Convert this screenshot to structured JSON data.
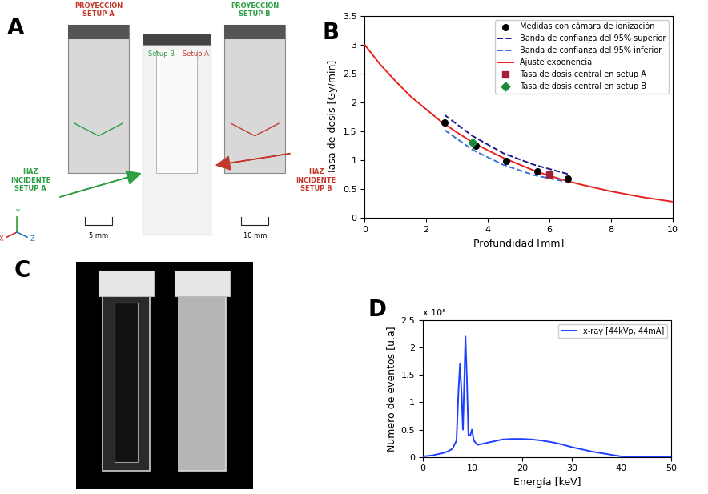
{
  "panel_labels": [
    "A",
    "B",
    "C",
    "D"
  ],
  "diagram": {
    "projection_a": "PROYECCIÓN\nSETUP A",
    "projection_b": "PROYECCIÓN\nSETUP B",
    "cuvette_setup_b": "Setup B",
    "cuvette_setup_a": "Setup A",
    "beam_a": "HAZ\nINCIDENTE\nSETUP A",
    "beam_b": "HAZ\nINCIDENTE\nSETUP B",
    "width_a": "5 mm",
    "width_b": "10 mm",
    "axes": [
      "X",
      "Y",
      "Z"
    ]
  },
  "chart_data": [
    {
      "type": "line",
      "x_label": "Profundidad [mm]",
      "y_label": "Tasa de dosis [Gy/min]",
      "xlim": [
        0,
        10
      ],
      "xticks": [
        0,
        2,
        4,
        6,
        8,
        10
      ],
      "ylim": [
        0,
        3.5
      ],
      "yticks": [
        0,
        0.5,
        1,
        1.5,
        2,
        2.5,
        3,
        3.5
      ],
      "grid": false,
      "legend": "upper right",
      "series": [
        {
          "name": "Medidas con cámara de ionización",
          "type": "scatter",
          "color": "#000000",
          "marker": "circle",
          "x": [
            2.6,
            3.6,
            4.6,
            5.6,
            6.6
          ],
          "values": [
            1.65,
            1.25,
            0.98,
            0.8,
            0.68
          ]
        },
        {
          "name": "Banda de confianza del 95% superior",
          "type": "line",
          "color": "#1a1a8c",
          "line_style": "dashed",
          "x": [
            2.6,
            3.5,
            4.5,
            5.5,
            6.6
          ],
          "values": [
            1.78,
            1.42,
            1.12,
            0.92,
            0.76
          ]
        },
        {
          "name": "Banda de confianza del 95% inferior",
          "type": "line",
          "color": "#3a6fd8",
          "line_style": "dashed",
          "x": [
            2.6,
            3.5,
            4.5,
            5.5,
            6.6
          ],
          "values": [
            1.52,
            1.18,
            0.92,
            0.74,
            0.62
          ]
        },
        {
          "name": "Ajuste exponencial",
          "type": "line",
          "color": "#e8231e",
          "line_style": "solid",
          "x": [
            0,
            0.5,
            1,
            1.5,
            2,
            2.5,
            3,
            3.5,
            4,
            4.5,
            5,
            5.5,
            6,
            6.5,
            7,
            7.5,
            8,
            8.5,
            9,
            9.5,
            10
          ],
          "values": [
            3.0,
            2.66,
            2.37,
            2.1,
            1.88,
            1.66,
            1.48,
            1.31,
            1.17,
            1.04,
            0.93,
            0.82,
            0.73,
            0.65,
            0.58,
            0.52,
            0.46,
            0.41,
            0.36,
            0.32,
            0.28
          ]
        },
        {
          "name": "Tasa de dosis central en setup A",
          "type": "scatter",
          "color": "#a0203a",
          "marker": "square",
          "x": [
            6.0
          ],
          "values": [
            0.75
          ]
        },
        {
          "name": "Tasa de dosis central en setup B",
          "type": "scatter",
          "color": "#1a8a3a",
          "marker": "diamond",
          "x": [
            3.5
          ],
          "values": [
            1.3
          ]
        }
      ]
    },
    {
      "type": "line",
      "x_label": "Energía [keV]",
      "y_label": "Numero de eventos [u.a]",
      "annotations": [
        "x 10⁵"
      ],
      "xlim": [
        0,
        50
      ],
      "xticks": [
        0,
        10,
        20,
        30,
        40,
        50
      ],
      "ylim": [
        0,
        2.5
      ],
      "yticks": [
        0,
        0.5,
        1,
        1.5,
        2,
        2.5
      ],
      "grid": false,
      "legend": "upper right",
      "series": [
        {
          "name": "x-ray [44kVp, 44mA]",
          "type": "line",
          "color": "#1f3fff",
          "line_style": "solid",
          "x": [
            0,
            1,
            2,
            3,
            4,
            5,
            6,
            6.8,
            7.2,
            7.5,
            7.8,
            8.1,
            8.4,
            8.6,
            8.9,
            9.2,
            9.6,
            9.9,
            10.3,
            11,
            12,
            14,
            16,
            18,
            20,
            22,
            24,
            26,
            28,
            30,
            32,
            34,
            36,
            38,
            40,
            42,
            44,
            50
          ],
          "values": [
            0.01,
            0.02,
            0.03,
            0.05,
            0.07,
            0.1,
            0.15,
            0.3,
            1.2,
            1.7,
            1.2,
            0.5,
            1.5,
            2.2,
            1.4,
            0.4,
            0.4,
            0.5,
            0.3,
            0.22,
            0.24,
            0.28,
            0.32,
            0.33,
            0.33,
            0.32,
            0.3,
            0.27,
            0.23,
            0.18,
            0.14,
            0.1,
            0.07,
            0.04,
            0.01,
            0.005,
            0,
            0
          ]
        }
      ]
    }
  ]
}
